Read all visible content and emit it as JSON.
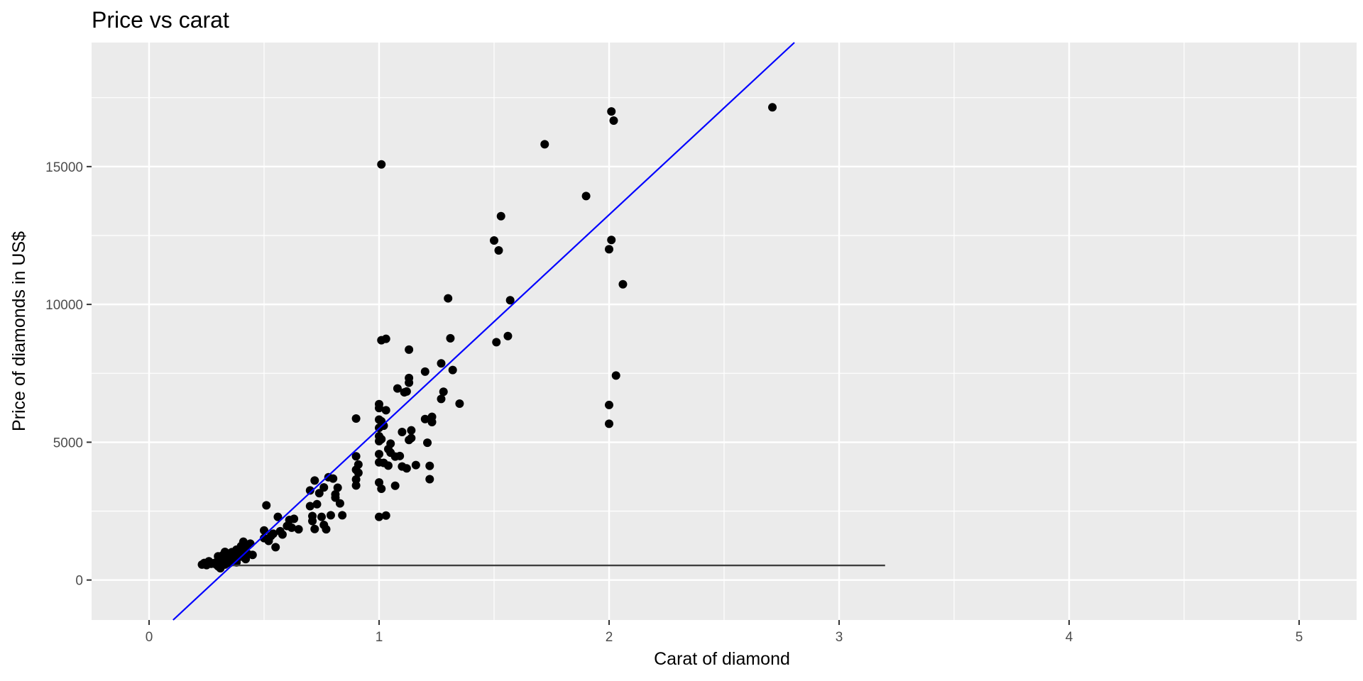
{
  "chart_data": {
    "type": "scatter",
    "title": "Price vs carat",
    "xlabel": "Carat of diamond",
    "ylabel": "Price of diamonds in US$",
    "xlim": [
      -0.25,
      5.25
    ],
    "ylim": [
      -1450,
      19500
    ],
    "x_ticks": [
      0,
      1,
      2,
      3,
      4,
      5
    ],
    "y_ticks": [
      0,
      5000,
      10000,
      15000
    ],
    "grid": true,
    "colors": {
      "panel": "#ebebeb",
      "grid": "#ffffff",
      "points": "#000000",
      "fit_line": "#0000ff",
      "h_line": "#3f3f3f"
    },
    "fit_line": {
      "intercept": -2260,
      "slope": 7756
    },
    "h_line": {
      "y": 530,
      "x_start": 0.36,
      "x_end": 3.2
    },
    "points": [
      [
        0.23,
        560
      ],
      [
        0.24,
        620
      ],
      [
        0.25,
        540
      ],
      [
        0.26,
        680
      ],
      [
        0.27,
        590
      ],
      [
        0.28,
        610
      ],
      [
        0.29,
        570
      ],
      [
        0.3,
        720
      ],
      [
        0.3,
        500
      ],
      [
        0.3,
        860
      ],
      [
        0.31,
        650
      ],
      [
        0.31,
        430
      ],
      [
        0.32,
        780
      ],
      [
        0.32,
        900
      ],
      [
        0.33,
        560
      ],
      [
        0.33,
        1020
      ],
      [
        0.34,
        690
      ],
      [
        0.34,
        810
      ],
      [
        0.35,
        620
      ],
      [
        0.35,
        940
      ],
      [
        0.36,
        760
      ],
      [
        0.36,
        1010
      ],
      [
        0.37,
        880
      ],
      [
        0.38,
        640
      ],
      [
        0.38,
        1100
      ],
      [
        0.39,
        990
      ],
      [
        0.4,
        1230
      ],
      [
        0.4,
        850
      ],
      [
        0.41,
        1050
      ],
      [
        0.41,
        1390
      ],
      [
        0.42,
        1150
      ],
      [
        0.42,
        760
      ],
      [
        0.43,
        1280
      ],
      [
        0.43,
        940
      ],
      [
        0.44,
        1320
      ],
      [
        0.45,
        910
      ],
      [
        0.5,
        1520
      ],
      [
        0.5,
        1800
      ],
      [
        0.51,
        2710
      ],
      [
        0.52,
        1420
      ],
      [
        0.53,
        1600
      ],
      [
        0.54,
        1680
      ],
      [
        0.55,
        1190
      ],
      [
        0.56,
        2290
      ],
      [
        0.57,
        1770
      ],
      [
        0.58,
        1650
      ],
      [
        0.6,
        1960
      ],
      [
        0.61,
        2180
      ],
      [
        0.62,
        1900
      ],
      [
        0.63,
        2220
      ],
      [
        0.65,
        1840
      ],
      [
        0.7,
        3250
      ],
      [
        0.7,
        2680
      ],
      [
        0.71,
        2320
      ],
      [
        0.71,
        2140
      ],
      [
        0.72,
        3610
      ],
      [
        0.72,
        1850
      ],
      [
        0.73,
        2750
      ],
      [
        0.74,
        3150
      ],
      [
        0.75,
        2290
      ],
      [
        0.76,
        3360
      ],
      [
        0.76,
        2000
      ],
      [
        0.77,
        1840
      ],
      [
        0.78,
        3730
      ],
      [
        0.79,
        2350
      ],
      [
        0.8,
        3680
      ],
      [
        0.81,
        3110
      ],
      [
        0.81,
        2990
      ],
      [
        0.82,
        3350
      ],
      [
        0.83,
        2780
      ],
      [
        0.84,
        2350
      ],
      [
        0.9,
        5860
      ],
      [
        0.9,
        4490
      ],
      [
        0.9,
        4000
      ],
      [
        0.9,
        3650
      ],
      [
        0.9,
        3430
      ],
      [
        0.91,
        3890
      ],
      [
        0.91,
        4190
      ],
      [
        1.0,
        6380
      ],
      [
        1.0,
        6240
      ],
      [
        1.0,
        5820
      ],
      [
        1.0,
        5520
      ],
      [
        1.0,
        5220
      ],
      [
        1.0,
        5040
      ],
      [
        1.0,
        4570
      ],
      [
        1.0,
        4270
      ],
      [
        1.0,
        3540
      ],
      [
        1.0,
        2290
      ],
      [
        1.01,
        15080
      ],
      [
        1.01,
        8700
      ],
      [
        1.01,
        5760
      ],
      [
        1.01,
        5110
      ],
      [
        1.01,
        3310
      ],
      [
        1.02,
        5600
      ],
      [
        1.02,
        4250
      ],
      [
        1.03,
        8750
      ],
      [
        1.03,
        6160
      ],
      [
        1.03,
        2340
      ],
      [
        1.04,
        4750
      ],
      [
        1.04,
        4150
      ],
      [
        1.05,
        4950
      ],
      [
        1.05,
        4620
      ],
      [
        1.07,
        3420
      ],
      [
        1.07,
        4480
      ],
      [
        1.08,
        6950
      ],
      [
        1.09,
        4500
      ],
      [
        1.1,
        5370
      ],
      [
        1.1,
        4120
      ],
      [
        1.11,
        6810
      ],
      [
        1.12,
        4050
      ],
      [
        1.12,
        6840
      ],
      [
        1.13,
        8360
      ],
      [
        1.13,
        7330
      ],
      [
        1.13,
        7160
      ],
      [
        1.13,
        5080
      ],
      [
        1.14,
        5430
      ],
      [
        1.14,
        5150
      ],
      [
        1.16,
        4170
      ],
      [
        1.2,
        7560
      ],
      [
        1.2,
        5840
      ],
      [
        1.21,
        4980
      ],
      [
        1.22,
        4140
      ],
      [
        1.22,
        3660
      ],
      [
        1.23,
        5920
      ],
      [
        1.23,
        5730
      ],
      [
        1.27,
        7860
      ],
      [
        1.27,
        6570
      ],
      [
        1.28,
        6830
      ],
      [
        1.3,
        10220
      ],
      [
        1.31,
        8770
      ],
      [
        1.32,
        7620
      ],
      [
        1.35,
        6400
      ],
      [
        1.5,
        12320
      ],
      [
        1.51,
        8630
      ],
      [
        1.52,
        11960
      ],
      [
        1.53,
        13200
      ],
      [
        1.56,
        8850
      ],
      [
        1.57,
        10150
      ],
      [
        1.72,
        15810
      ],
      [
        1.9,
        13930
      ],
      [
        2.0,
        12000
      ],
      [
        2.0,
        6350
      ],
      [
        2.0,
        5670
      ],
      [
        2.01,
        17000
      ],
      [
        2.01,
        12340
      ],
      [
        2.02,
        16670
      ],
      [
        2.03,
        7420
      ],
      [
        2.06,
        10730
      ],
      [
        2.71,
        17150
      ]
    ]
  }
}
